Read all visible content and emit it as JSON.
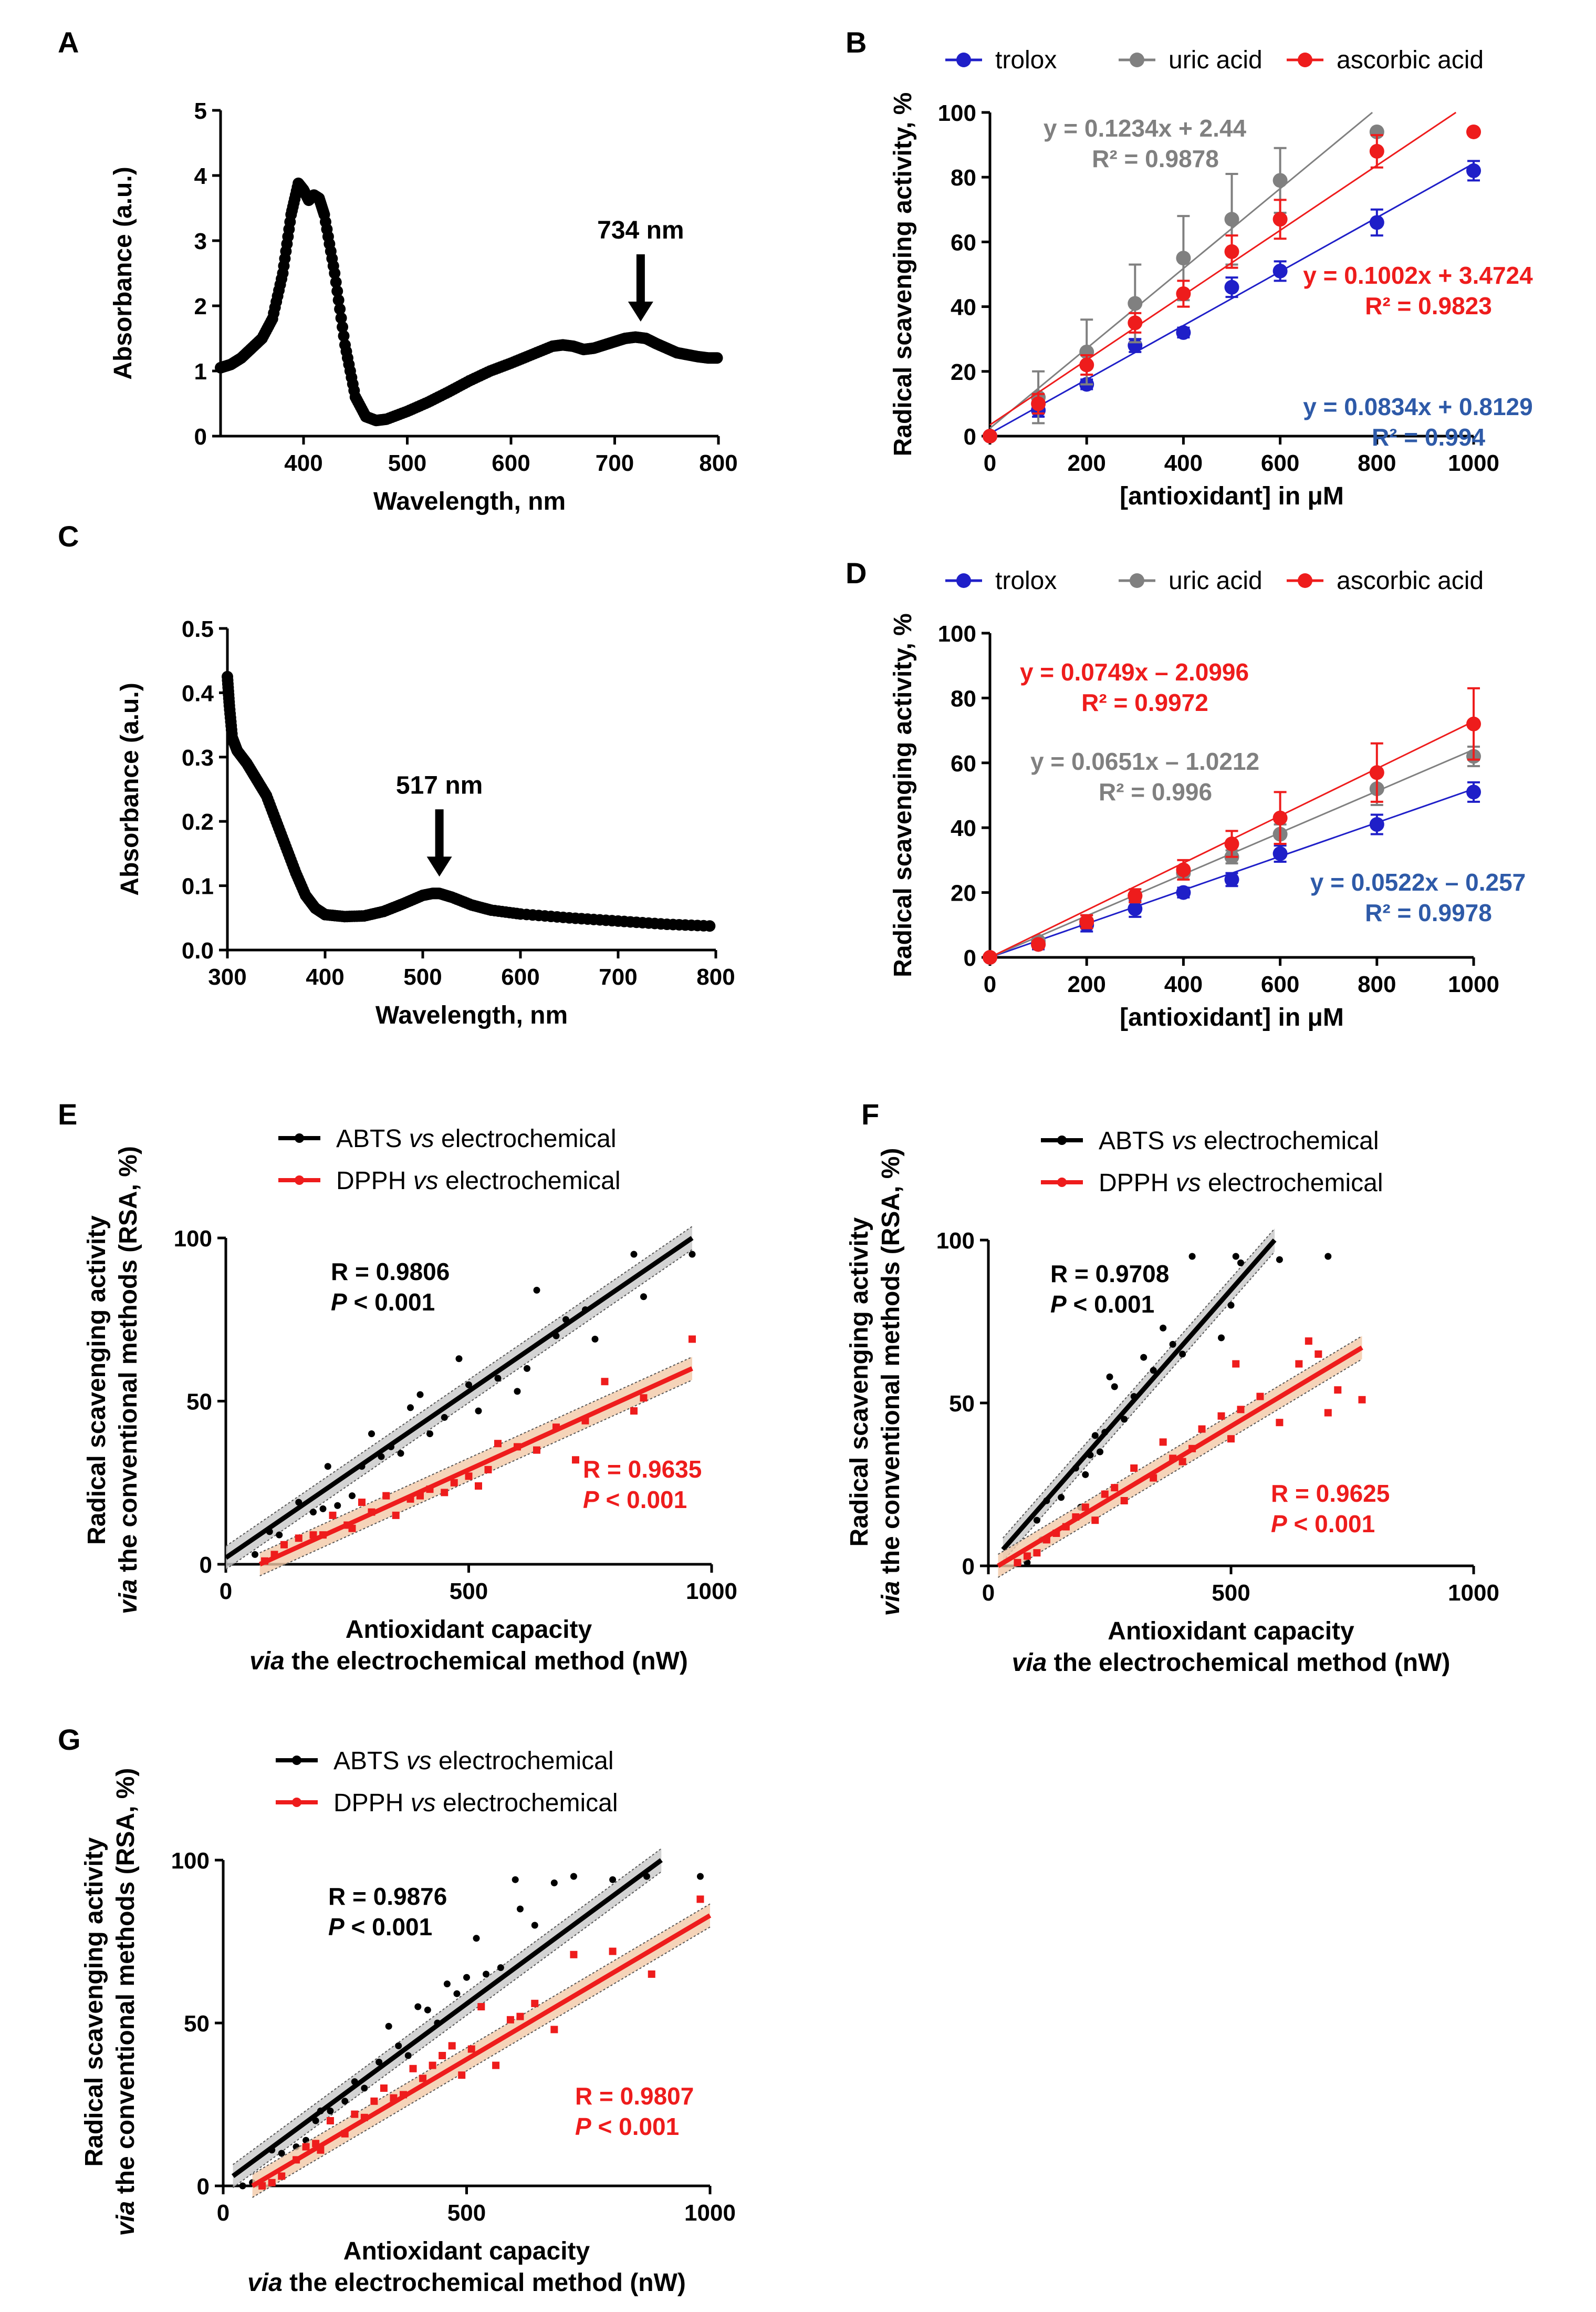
{
  "panels": [
    {
      "id": "A",
      "label": "A"
    },
    {
      "id": "B",
      "label": "B"
    },
    {
      "id": "C",
      "label": "C"
    },
    {
      "id": "D",
      "label": "D"
    },
    {
      "id": "E",
      "label": "E"
    },
    {
      "id": "F",
      "label": "F"
    },
    {
      "id": "G",
      "label": "G"
    }
  ],
  "chart_data": [
    {
      "id": "A",
      "type": "line",
      "title": "",
      "xlabel": "Wavelength, nm",
      "ylabel": "Absorbance (a.u.)",
      "xlim": [
        320,
        800
      ],
      "ylim": [
        0,
        5
      ],
      "xticks": [
        400,
        500,
        600,
        700,
        800
      ],
      "yticks": [
        0,
        1,
        2,
        3,
        4,
        5
      ],
      "annotation": "734 nm",
      "annotation_x": 725,
      "annotation_y": 1.5,
      "x": [
        320,
        330,
        340,
        350,
        360,
        370,
        380,
        388,
        395,
        400,
        405,
        410,
        415,
        420,
        430,
        440,
        450,
        460,
        470,
        480,
        500,
        520,
        540,
        560,
        580,
        600,
        620,
        640,
        650,
        660,
        670,
        680,
        690,
        700,
        710,
        720,
        730,
        740,
        750,
        760,
        770,
        780,
        790,
        800
      ],
      "y": [
        1.05,
        1.1,
        1.2,
        1.35,
        1.5,
        1.8,
        2.5,
        3.4,
        3.88,
        3.78,
        3.62,
        3.7,
        3.65,
        3.4,
        2.5,
        1.4,
        0.6,
        0.3,
        0.24,
        0.26,
        0.38,
        0.52,
        0.68,
        0.85,
        1.0,
        1.12,
        1.25,
        1.38,
        1.4,
        1.38,
        1.33,
        1.35,
        1.4,
        1.45,
        1.5,
        1.52,
        1.5,
        1.42,
        1.35,
        1.28,
        1.25,
        1.22,
        1.2,
        1.2
      ]
    },
    {
      "id": "B",
      "type": "scatter",
      "xlabel": "[antioxidant] in μM",
      "ylabel": "Radical scavenging activity, %",
      "xlim": [
        0,
        1000
      ],
      "ylim": [
        0,
        100
      ],
      "xticks": [
        0,
        200,
        400,
        600,
        800,
        1000
      ],
      "yticks": [
        0,
        20,
        40,
        60,
        80,
        100
      ],
      "series": [
        {
          "name": "trolox",
          "color": "#1f1fc8",
          "x": [
            0,
            100,
            200,
            300,
            400,
            500,
            600,
            800,
            1000
          ],
          "y": [
            0,
            8,
            16,
            28,
            32,
            46,
            51,
            66,
            82
          ],
          "err": [
            0,
            2,
            1.5,
            2,
            1.5,
            3,
            3,
            4,
            3
          ],
          "slope": 0.0834,
          "intercept": 0.8129,
          "eq": "y = 0.0834x + 0.8129",
          "r2": "R² = 0.994",
          "eq_color": "#2e5aa8"
        },
        {
          "name": "uric acid",
          "color": "#808080",
          "x": [
            0,
            100,
            200,
            300,
            400,
            500,
            600,
            800
          ],
          "y": [
            0,
            12,
            26,
            41,
            55,
            67,
            79,
            94
          ],
          "err": [
            0,
            8,
            10,
            12,
            13,
            14,
            10,
            0
          ],
          "slope": 0.1234,
          "intercept": 2.44,
          "eq": "y = 0.1234x + 2.44",
          "r2": "R² = 0.9878",
          "eq_color": "#808080"
        },
        {
          "name": "ascorbic acid",
          "color": "#ee1c1c",
          "x": [
            0,
            100,
            200,
            300,
            400,
            500,
            600,
            800,
            1000
          ],
          "y": [
            0,
            10,
            22,
            35,
            44,
            57,
            67,
            88,
            94
          ],
          "err": [
            0,
            3,
            3,
            3,
            4,
            5,
            6,
            5,
            0
          ],
          "slope": 0.1002,
          "intercept": 3.4724,
          "eq": "y = 0.1002x + 3.4724",
          "r2": "R² = 0.9823",
          "eq_color": "#ee1c1c"
        }
      ]
    },
    {
      "id": "C",
      "type": "line",
      "xlabel": "Wavelength, nm",
      "ylabel": "Absorbance (a.u.)",
      "xlim": [
        300,
        800
      ],
      "ylim": [
        0,
        0.5
      ],
      "xticks": [
        300,
        400,
        500,
        600,
        700,
        800
      ],
      "yticks": [
        0.0,
        0.1,
        0.2,
        0.3,
        0.4,
        0.5
      ],
      "annotation": "517 nm",
      "annotation_x": 517,
      "annotation_y": 0.088,
      "x": [
        300,
        302,
        305,
        310,
        320,
        330,
        340,
        350,
        360,
        370,
        380,
        390,
        400,
        420,
        440,
        460,
        480,
        500,
        510,
        517,
        530,
        550,
        570,
        600,
        650,
        700,
        750,
        800
      ],
      "y": [
        0.425,
        0.38,
        0.33,
        0.31,
        0.29,
        0.265,
        0.24,
        0.2,
        0.16,
        0.12,
        0.085,
        0.065,
        0.055,
        0.052,
        0.053,
        0.06,
        0.072,
        0.085,
        0.088,
        0.088,
        0.082,
        0.07,
        0.062,
        0.056,
        0.05,
        0.045,
        0.04,
        0.037
      ]
    },
    {
      "id": "D",
      "type": "scatter",
      "xlabel": "[antioxidant] in μM",
      "ylabel": "Radical scavenging activity, %",
      "xlim": [
        0,
        1000
      ],
      "ylim": [
        0,
        100
      ],
      "xticks": [
        0,
        200,
        400,
        600,
        800,
        1000
      ],
      "yticks": [
        0,
        20,
        40,
        60,
        80,
        100
      ],
      "series": [
        {
          "name": "trolox",
          "color": "#1f1fc8",
          "x": [
            0,
            100,
            200,
            300,
            400,
            500,
            600,
            800,
            1000
          ],
          "y": [
            0,
            4,
            10,
            15,
            20,
            24,
            32,
            41,
            51
          ],
          "err": [
            0,
            1.5,
            2,
            2.5,
            1.5,
            2,
            2.5,
            3,
            3
          ],
          "slope": 0.0522,
          "intercept": -0.257,
          "eq": "y = 0.0522x – 0.257",
          "r2": "R² = 0.9978",
          "eq_color": "#2e5aa8"
        },
        {
          "name": "uric acid",
          "color": "#808080",
          "x": [
            0,
            100,
            200,
            300,
            400,
            500,
            600,
            800,
            1000
          ],
          "y": [
            0,
            5,
            11,
            19,
            26,
            31,
            38,
            52,
            62
          ],
          "err": [
            0,
            1,
            2,
            2,
            2,
            2,
            3,
            5,
            3
          ],
          "slope": 0.0651,
          "intercept": -1.0212,
          "eq": "y = 0.0651x – 1.0212",
          "r2": "R² = 0.996",
          "eq_color": "#808080"
        },
        {
          "name": "ascorbic acid",
          "color": "#ee1c1c",
          "x": [
            0,
            100,
            200,
            300,
            400,
            500,
            600,
            800,
            1000
          ],
          "y": [
            0,
            4,
            11,
            19,
            27,
            35,
            43,
            57,
            72
          ],
          "err": [
            0,
            1,
            2,
            2,
            3,
            4,
            8,
            9,
            11
          ],
          "slope": 0.0749,
          "intercept": -2.0996,
          "eq": "y = 0.0749x – 2.0996",
          "r2": "R² = 0.9972",
          "eq_color": "#ee1c1c"
        }
      ]
    },
    {
      "id": "E",
      "type": "scatter",
      "xlabel_lines": [
        "Antioxidant capacity",
        "via the electrochemical method (nW)"
      ],
      "ylabel_lines": [
        "Radical scavenging activity",
        "via the conventional methods (RSA, %)"
      ],
      "xlim": [
        0,
        1000
      ],
      "ylim": [
        0,
        100
      ],
      "xticks": [
        0,
        500,
        1000
      ],
      "yticks": [
        0,
        50,
        100
      ],
      "series": [
        {
          "name": "ABTS vs electrochemical",
          "color": "#000000",
          "marker": "dot",
          "R": "R = 0.9806",
          "P": "P < 0.001",
          "fit": [
            [
              0,
              2
            ],
            [
              960,
              100
            ]
          ],
          "x": [
            60,
            90,
            110,
            150,
            180,
            200,
            210,
            230,
            260,
            280,
            300,
            320,
            340,
            360,
            380,
            400,
            420,
            450,
            480,
            500,
            520,
            560,
            600,
            620,
            640,
            680,
            700,
            740,
            760,
            840,
            860,
            960
          ],
          "y": [
            3,
            10,
            9,
            19,
            16,
            17,
            30,
            18,
            21,
            30,
            40,
            33,
            36,
            34,
            48,
            52,
            40,
            45,
            63,
            55,
            47,
            57,
            53,
            60,
            84,
            70,
            75,
            78,
            69,
            95,
            82,
            95
          ]
        },
        {
          "name": "DPPH vs electrochemical",
          "color": "#ee1c1c",
          "marker": "square",
          "R": "R = 0.9635",
          "P": "P < 0.001",
          "fit": [
            [
              70,
              0
            ],
            [
              960,
              60
            ]
          ],
          "x": [
            80,
            100,
            120,
            150,
            180,
            200,
            220,
            250,
            260,
            280,
            300,
            330,
            350,
            380,
            400,
            420,
            450,
            470,
            500,
            520,
            540,
            560,
            600,
            640,
            680,
            720,
            740,
            780,
            840,
            860,
            960
          ],
          "y": [
            1,
            3,
            6,
            8,
            9,
            9,
            15,
            12,
            11,
            19,
            16,
            21,
            15,
            20,
            21,
            23,
            22,
            25,
            27,
            24,
            29,
            37,
            36,
            35,
            42,
            32,
            44,
            56,
            47,
            51,
            69
          ]
        }
      ]
    },
    {
      "id": "F",
      "type": "scatter",
      "xlabel_lines": [
        "Antioxidant capacity",
        "via the electrochemical method (nW)"
      ],
      "ylabel_lines": [
        "Radical scavenging activity",
        "via the conventional methods (RSA, %)"
      ],
      "xlim": [
        0,
        1000
      ],
      "ylim": [
        0,
        100
      ],
      "xticks": [
        0,
        500,
        1000
      ],
      "yticks": [
        0,
        50,
        100
      ],
      "series": [
        {
          "name": "ABTS vs electrochemical",
          "color": "#000000",
          "marker": "dot",
          "R": "R = 0.9708",
          "P": "P < 0.001",
          "fit": [
            [
              30,
              5
            ],
            [
              590,
              100
            ]
          ],
          "x": [
            80,
            100,
            110,
            120,
            140,
            150,
            160,
            180,
            190,
            200,
            210,
            220,
            230,
            240,
            250,
            260,
            280,
            300,
            320,
            340,
            360,
            380,
            400,
            420,
            480,
            500,
            510,
            520,
            600,
            700
          ],
          "y": [
            1,
            14,
            8,
            20,
            10,
            21,
            12,
            30,
            18,
            28,
            34,
            40,
            35,
            41,
            58,
            55,
            45,
            52,
            64,
            60,
            73,
            68,
            65,
            95,
            70,
            80,
            95,
            93,
            94,
            95
          ]
        },
        {
          "name": "DPPH vs electrochemical",
          "color": "#ee1c1c",
          "marker": "square",
          "R": "R = 0.9625",
          "P": "P < 0.001",
          "fit": [
            [
              20,
              0
            ],
            [
              770,
              67
            ]
          ],
          "x": [
            60,
            80,
            100,
            120,
            140,
            160,
            180,
            200,
            220,
            240,
            260,
            280,
            300,
            340,
            360,
            380,
            400,
            420,
            440,
            480,
            500,
            510,
            520,
            560,
            600,
            640,
            660,
            680,
            700,
            720,
            770
          ],
          "y": [
            1,
            3,
            4,
            8,
            10,
            12,
            15,
            18,
            14,
            22,
            24,
            20,
            30,
            27,
            38,
            33,
            32,
            36,
            42,
            46,
            39,
            62,
            48,
            52,
            44,
            62,
            69,
            65,
            47,
            54,
            51
          ]
        }
      ]
    },
    {
      "id": "G",
      "type": "scatter",
      "xlabel_lines": [
        "Antioxidant capacity",
        "via the electrochemical method (nW)"
      ],
      "ylabel_lines": [
        "Radical scavenging activity",
        "via the conventional methods (RSA, %)"
      ],
      "xlim": [
        0,
        1000
      ],
      "ylim": [
        0,
        100
      ],
      "xticks": [
        0,
        500,
        1000
      ],
      "yticks": [
        0,
        50,
        100
      ],
      "series": [
        {
          "name": "ABTS vs electrochemical",
          "color": "#000000",
          "marker": "dot",
          "R": "R = 0.9876",
          "P": "P < 0.001",
          "fit": [
            [
              20,
              3
            ],
            [
              900,
              100
            ]
          ],
          "x": [
            40,
            60,
            80,
            100,
            120,
            150,
            170,
            190,
            200,
            220,
            250,
            270,
            290,
            320,
            340,
            360,
            380,
            400,
            420,
            440,
            460,
            480,
            500,
            520,
            540,
            570,
            600,
            610,
            640,
            680,
            720,
            800,
            870,
            980
          ],
          "y": [
            0,
            1,
            1,
            11,
            10,
            12,
            14,
            20,
            23,
            23,
            26,
            32,
            30,
            38,
            49,
            43,
            40,
            55,
            54,
            50,
            62,
            59,
            64,
            76,
            65,
            67,
            94,
            85,
            80,
            93,
            95,
            94,
            95,
            95
          ]
        },
        {
          "name": "DPPH vs electrochemical",
          "color": "#ee1c1c",
          "marker": "square",
          "R": "R = 0.9807",
          "P": "P < 0.001",
          "fit": [
            [
              60,
              0
            ],
            [
              1000,
              83
            ]
          ],
          "x": [
            80,
            100,
            120,
            150,
            170,
            190,
            200,
            220,
            250,
            270,
            290,
            310,
            330,
            350,
            370,
            390,
            410,
            430,
            450,
            470,
            490,
            510,
            530,
            560,
            590,
            610,
            640,
            680,
            720,
            800,
            880,
            980
          ],
          "y": [
            0,
            1,
            3,
            8,
            12,
            13,
            11,
            20,
            16,
            22,
            21,
            26,
            30,
            27,
            28,
            36,
            33,
            37,
            40,
            43,
            34,
            42,
            55,
            37,
            51,
            52,
            56,
            48,
            71,
            72,
            65,
            88
          ]
        }
      ]
    }
  ]
}
